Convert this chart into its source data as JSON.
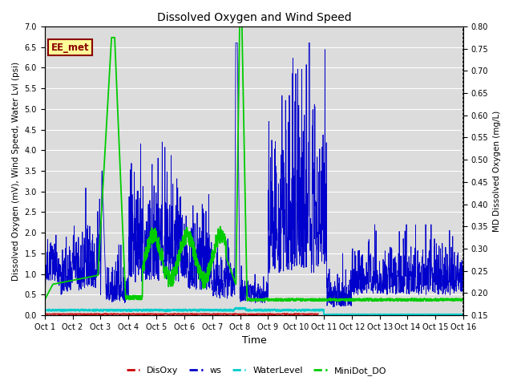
{
  "title": "Dissolved Oxygen and Wind Speed",
  "xlabel": "Time",
  "ylabel_left": "Dissolved Oxygen (mV), Wind Speed, Water Lvl (psi)",
  "ylabel_right": "MD Dissolved Oxygen (mg/L)",
  "annotation": "EE_met",
  "ylim_left": [
    0.0,
    7.0
  ],
  "ylim_right": [
    0.15,
    0.8
  ],
  "yticks_left": [
    0.0,
    0.5,
    1.0,
    1.5,
    2.0,
    2.5,
    3.0,
    3.5,
    4.0,
    4.5,
    5.0,
    5.5,
    6.0,
    6.5,
    7.0
  ],
  "yticks_right": [
    0.15,
    0.2,
    0.25,
    0.3,
    0.35,
    0.4,
    0.45,
    0.5,
    0.55,
    0.6,
    0.65,
    0.7,
    0.75,
    0.8
  ],
  "xtick_labels": [
    "Oct 1",
    "Oct 2",
    "Oct 3",
    "Oct 4",
    "Oct 5",
    "Oct 6",
    "Oct 7",
    "Oct 8",
    "Oct 9",
    "Oct 10",
    "Oct 11",
    "Oct 12",
    "Oct 13",
    "Oct 14",
    "Oct 15",
    "Oct 16"
  ],
  "colors": {
    "DisOxy": "#cc0000",
    "ws": "#0000cc",
    "WaterLevel": "#00cccc",
    "MiniDot_DO": "#00cc00",
    "background": "#dcdcdc",
    "annotation_bg": "#ffff99",
    "annotation_border": "#8b0000"
  },
  "legend_labels": [
    "DisOxy",
    "ws",
    "WaterLevel",
    "MiniDot_DO"
  ],
  "grid_color": "#ffffff"
}
